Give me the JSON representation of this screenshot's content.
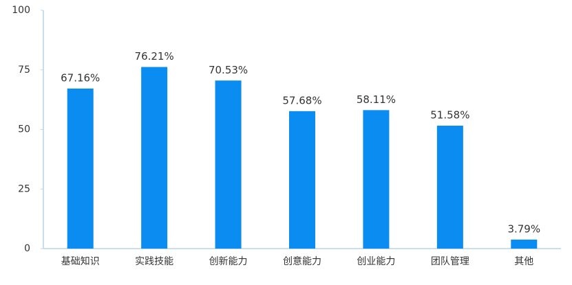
{
  "chart_data": {
    "type": "bar",
    "categories": [
      "基础知识",
      "实践技能",
      "创新能力",
      "创意能力",
      "创业能力",
      "团队管理",
      "其他"
    ],
    "values": [
      67.16,
      76.21,
      70.53,
      57.68,
      58.11,
      51.58,
      3.79
    ],
    "value_labels": [
      "67.16%",
      "76.21%",
      "70.53%",
      "57.68%",
      "58.11%",
      "51.58%",
      "3.79%"
    ],
    "color": "#0b8cf0",
    "ylim": [
      0,
      100
    ],
    "yticks": [
      0,
      25,
      50,
      75,
      100
    ],
    "grid": false
  }
}
